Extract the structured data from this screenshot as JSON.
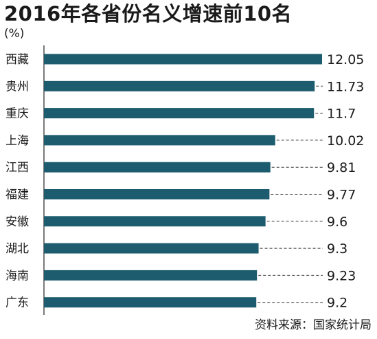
{
  "title": "2016年各省份名义增速前10名",
  "unit": "(%)",
  "source": "资料来源：国家统计局",
  "colors": {
    "bar": "#1d5c6e",
    "text": "#1a1a1a",
    "axis": "#222222",
    "leader": "#333333"
  },
  "chart_data": {
    "type": "bar",
    "orientation": "horizontal",
    "categories": [
      "西藏",
      "贵州",
      "重庆",
      "上海",
      "江西",
      "福建",
      "安徽",
      "湖北",
      "海南",
      "广东"
    ],
    "values": [
      12.05,
      11.73,
      11.7,
      10.02,
      9.81,
      9.77,
      9.6,
      9.3,
      9.23,
      9.2
    ],
    "value_labels": [
      "12.05",
      "11.73",
      "11.7",
      "10.02",
      "9.81",
      "9.77",
      "9.6",
      "9.3",
      "9.23",
      "9.2"
    ],
    "grid": false,
    "legend": "none"
  }
}
